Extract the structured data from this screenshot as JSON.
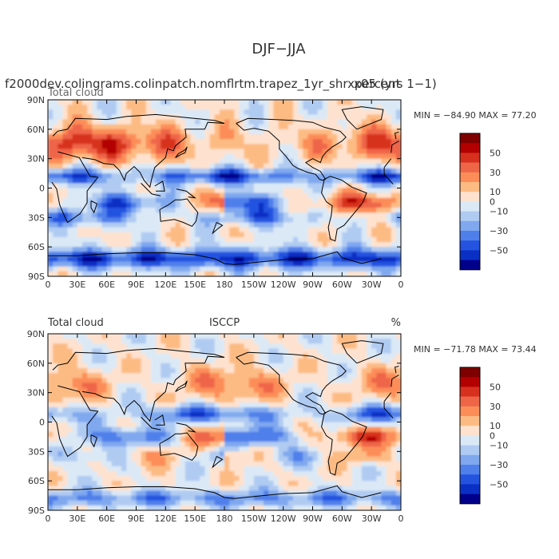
{
  "title": "DJF−JJA",
  "panels": [
    {
      "id": "model",
      "header_main": "f2000dev.colingrams.colinpatch.nomflrtm.trapez_1yr_shrxpercent",
      "header_suffix": "x05 (yrs 1−1)",
      "left_label": "Total cloud",
      "center_label": "",
      "right_label": "",
      "stats": "MIN = −84.90 MAX =  77.20",
      "field_seed": 1
    },
    {
      "id": "obs",
      "header_main": "",
      "header_suffix": "",
      "left_label": "Total cloud",
      "center_label": "ISCCP",
      "right_label": "%",
      "stats": "MIN = −71.78 MAX =  73.44",
      "field_seed": 2
    }
  ],
  "lat_ticks": [
    "90N",
    "60N",
    "30N",
    "0",
    "30S",
    "60S",
    "90S"
  ],
  "lon_ticks": [
    "0",
    "30E",
    "60E",
    "90E",
    "120E",
    "150E",
    "180",
    "150W",
    "120W",
    "90W",
    "60W",
    "30W",
    "0"
  ],
  "colorbar": {
    "labels": [
      "50",
      "30",
      "10",
      "0",
      "−10",
      "−30",
      "−50"
    ],
    "colors": [
      "#7f0000",
      "#b30000",
      "#d7301f",
      "#ef6548",
      "#fc8d59",
      "#fdbb84",
      "#fee2cf",
      "#dbe9f6",
      "#b0cbf2",
      "#7fa8ef",
      "#4f7fea",
      "#2453e0",
      "#0a2fc4",
      "#00008b"
    ]
  },
  "chart_data": [
    {
      "type": "heatmap",
      "title": "DJF−JJA",
      "variable": "Total cloud",
      "units": "%",
      "min": -84.9,
      "max": 77.2,
      "levels": [
        -60,
        -50,
        -40,
        -30,
        -20,
        -10,
        0,
        10,
        20,
        30,
        40,
        50,
        60
      ],
      "xlim": [
        0,
        360
      ],
      "ylim": [
        -90,
        90
      ]
    },
    {
      "type": "heatmap",
      "title": "ISCCP",
      "variable": "Total cloud",
      "units": "%",
      "min": -71.78,
      "max": 73.44,
      "levels": [
        -60,
        -50,
        -40,
        -30,
        -20,
        -10,
        0,
        10,
        20,
        30,
        40,
        50,
        60
      ],
      "xlim": [
        0,
        360
      ],
      "ylim": [
        -90,
        90
      ]
    }
  ]
}
